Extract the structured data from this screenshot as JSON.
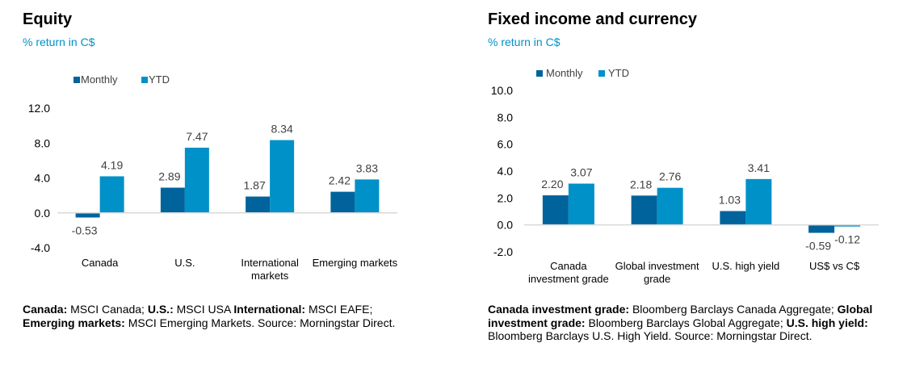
{
  "colors": {
    "monthly": "#00639b",
    "ytd": "#0091c8",
    "subtitle": "#0091c8",
    "axis": "#d9d9d9",
    "text": "#404040"
  },
  "left": {
    "title": "Equity",
    "subtitle": "% return in C$",
    "note": [
      {
        "b": "Canada:",
        "t": " MSCI Canada; "
      },
      {
        "b": "U.S.:",
        "t": " MSCI USA "
      },
      {
        "b": "International:",
        "t": " MSCI EAFE; "
      },
      {
        "b": "Emerging markets:",
        "t": " MSCI Emerging Markets. Source: Morningstar Direct."
      }
    ]
  },
  "right": {
    "title": "Fixed income and currency",
    "subtitle": "% return in C$",
    "note": [
      {
        "b": "Canada investment grade:",
        "t": " Bloomberg Barclays Canada Aggregate; "
      },
      {
        "b": "Global investment grade:",
        "t": " Bloomberg Barclays Global Aggregate; "
      },
      {
        "b": "U.S. high yield:",
        "t": " Bloomberg Barclays U.S. High Yield. Source: Morningstar Direct."
      }
    ]
  },
  "chart_data": [
    {
      "type": "bar",
      "title": "Equity",
      "ylabel": "% return in C$",
      "categories": [
        [
          "Canada"
        ],
        [
          "U.S."
        ],
        [
          "International",
          "markets"
        ],
        [
          "Emerging markets"
        ]
      ],
      "series": [
        {
          "name": "Monthly",
          "values": [
            -0.53,
            2.89,
            1.87,
            2.42
          ],
          "labels": [
            "-0.53",
            "2.89",
            "1.87",
            "2.42"
          ]
        },
        {
          "name": "YTD",
          "values": [
            4.19,
            7.47,
            8.34,
            3.83
          ],
          "labels": [
            "4.19",
            "7.47",
            "8.34",
            "3.83"
          ]
        }
      ],
      "ylim": [
        -4,
        12
      ],
      "yticks": [
        "12.0",
        "8.0",
        "4.0",
        "0.0",
        "-4.0"
      ],
      "ytick_values": [
        12,
        8,
        4,
        0,
        -4
      ],
      "grid": false,
      "legend": "top-left"
    },
    {
      "type": "bar",
      "title": "Fixed income and currency",
      "ylabel": "% return in C$",
      "categories": [
        [
          "Canada",
          "investment grade"
        ],
        [
          "Global investment",
          "grade"
        ],
        [
          "U.S. high yield"
        ],
        [
          "US$ vs C$"
        ]
      ],
      "series": [
        {
          "name": "Monthly",
          "values": [
            2.2,
            2.18,
            1.03,
            -0.59
          ],
          "labels": [
            "2.20",
            "2.18",
            "1.03",
            "-0.59"
          ]
        },
        {
          "name": "YTD",
          "values": [
            3.07,
            2.76,
            3.41,
            -0.12
          ],
          "labels": [
            "3.07",
            "2.76",
            "3.41",
            "-0.12"
          ]
        }
      ],
      "ylim": [
        -2,
        10
      ],
      "yticks": [
        "10.0",
        "8.0",
        "6.0",
        "4.0",
        "2.0",
        "0.0",
        "-2.0"
      ],
      "ytick_values": [
        10,
        8,
        6,
        4,
        2,
        0,
        -2
      ],
      "grid": false,
      "legend": "top-left"
    }
  ]
}
